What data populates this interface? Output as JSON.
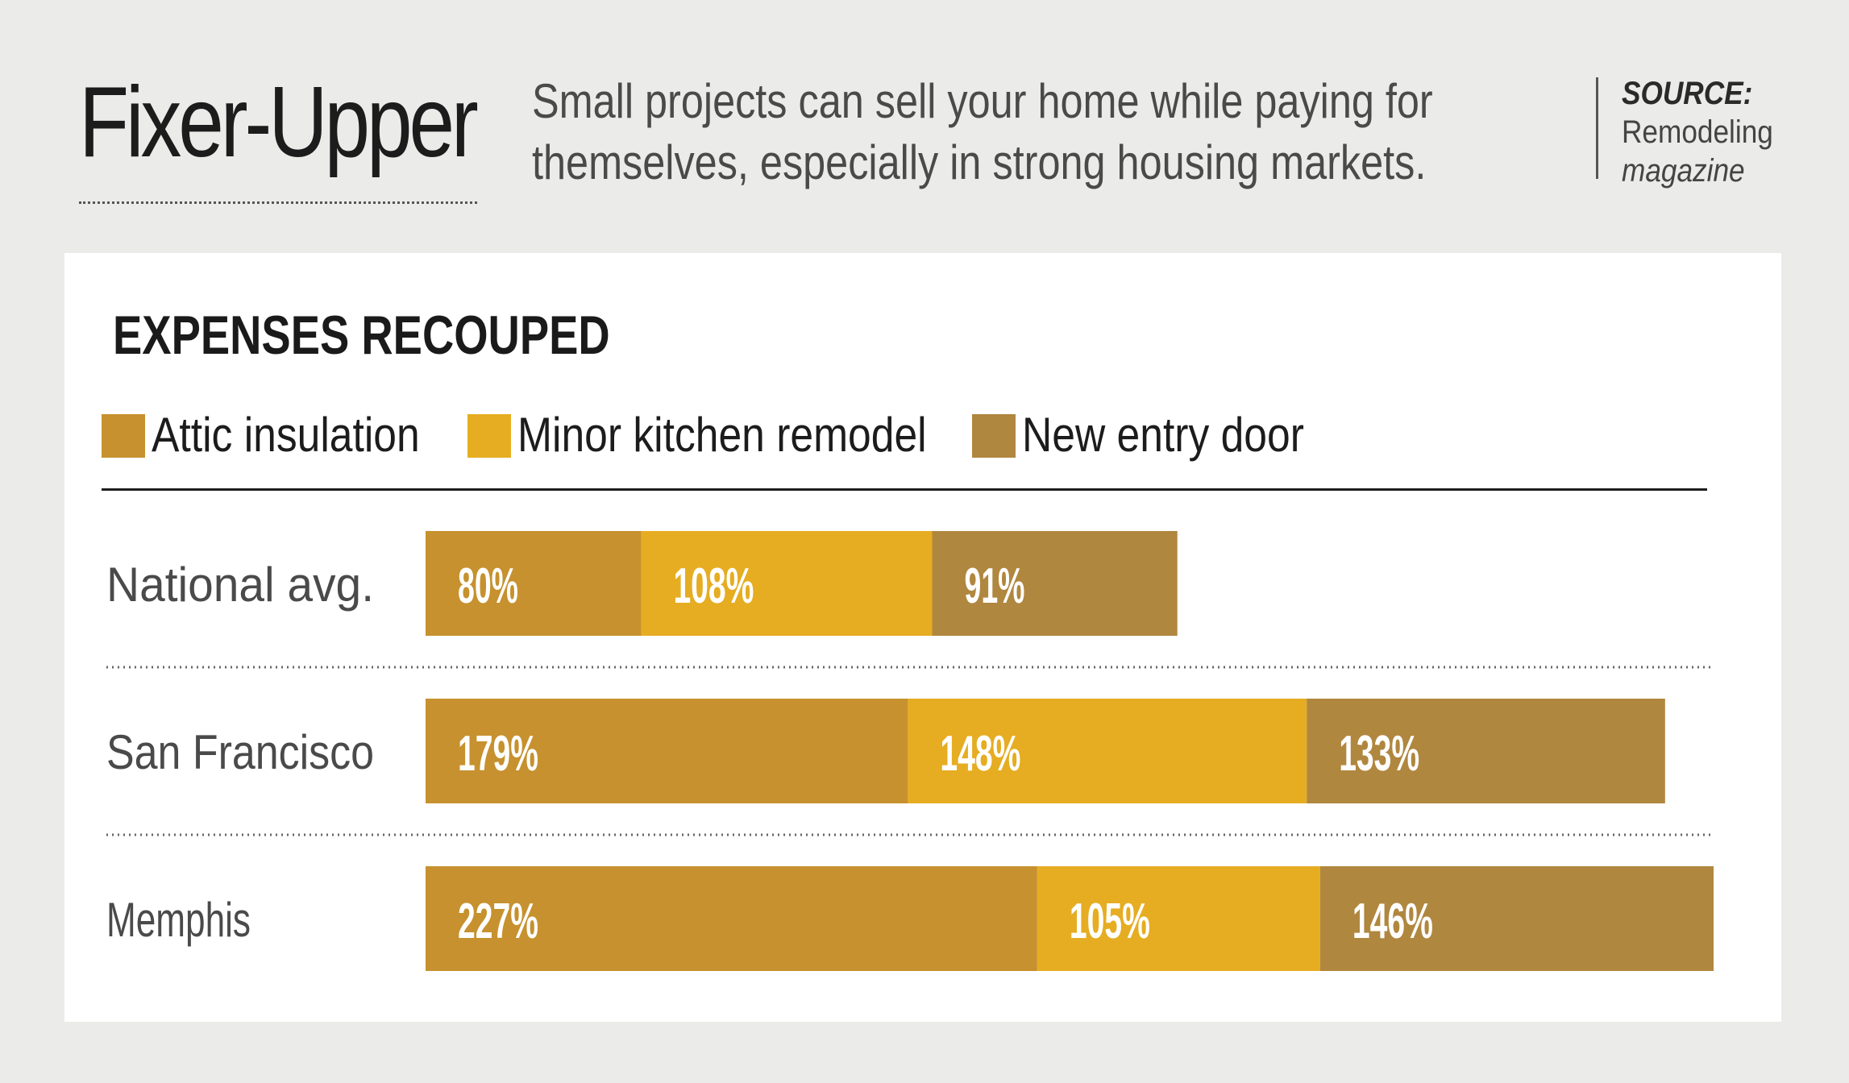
{
  "header": {
    "title": "Fixer-Upper",
    "subtitle_line1": "Small projects can sell your home while paying for",
    "subtitle_line2": "themselves, especially in strong housing markets.",
    "source_label": "SOURCE:",
    "source_name_line1": "Remodeling",
    "source_name_line2": "magazine"
  },
  "colors": {
    "background": "#ebebea",
    "card": "#ffffff",
    "attic": "#c6912e",
    "kitchen": "#e6ad22",
    "door": "#b0873f",
    "bar_label": "#ffffff",
    "category_label": "#4a4a4a"
  },
  "chart_data": {
    "type": "bar",
    "orientation": "horizontal",
    "stacked": true,
    "title": "EXPENSES RECOUPED",
    "legend_position": "top-left",
    "categories": [
      "National avg.",
      "San Francisco",
      "Memphis"
    ],
    "series": [
      {
        "name": "Attic insulation",
        "values": [
          80,
          179,
          227
        ],
        "labels": [
          "80%",
          "179%",
          "227%"
        ],
        "color": "#c6912e"
      },
      {
        "name": "Minor kitchen remodel",
        "values": [
          108,
          148,
          105
        ],
        "labels": [
          "108%",
          "148%",
          "105%"
        ],
        "color": "#e6ad22"
      },
      {
        "name": "New entry door",
        "values": [
          91,
          133,
          146
        ],
        "labels": [
          "91%",
          "133%",
          "146%"
        ],
        "color": "#b0873f"
      }
    ],
    "xlim": [
      0,
      478
    ],
    "grid": false
  }
}
